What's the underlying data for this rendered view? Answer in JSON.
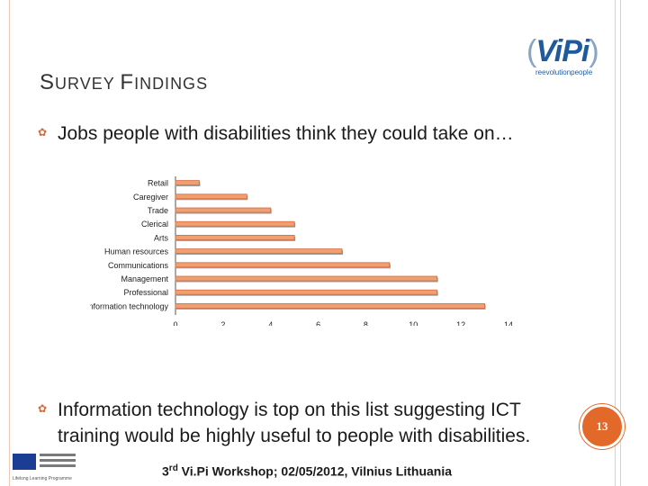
{
  "slide": {
    "title_first_big": "S",
    "title_rest1": "URVEY ",
    "title_second_big": "F",
    "title_rest2": "INDINGS",
    "bullet1": "Jobs people with disabilities think they could take on…",
    "bullet2": "Information technology is top on this list suggesting ICT training would be highly useful to people with disabilities.",
    "page_number": "13",
    "footer_ordinal": "3",
    "footer_sup": "rd",
    "footer_text": " Vi.Pi Workshop; 02/05/2012, Vilnius Lithuania",
    "eu_caption": "Lifelong Learning Programme"
  },
  "logo": {
    "open_paren": "(",
    "main": "ViPi",
    "close_paren": ")",
    "tagline": "reevolutionpeople"
  },
  "colors": {
    "accent": "#e3692b",
    "bar_fill": "#f0a070",
    "bar_edge": "#d8683a",
    "logo_blue": "#1f5a9e"
  },
  "icons": {
    "bullet": "gear-bullet-icon",
    "flag": "eu-flag-icon"
  },
  "chart_data": {
    "type": "bar",
    "orientation": "horizontal",
    "categories": [
      "Retail",
      "Caregiver",
      "Trade",
      "Clerical",
      "Arts",
      "Human resources",
      "Communications",
      "Management",
      "Professional",
      "Information technology"
    ],
    "values": [
      1,
      3,
      4,
      5,
      5,
      7,
      9,
      11,
      11,
      13
    ],
    "xlim": [
      0,
      14
    ],
    "xticks": [
      0,
      2,
      4,
      6,
      8,
      10,
      12,
      14
    ],
    "grid": false,
    "legend": "none"
  }
}
